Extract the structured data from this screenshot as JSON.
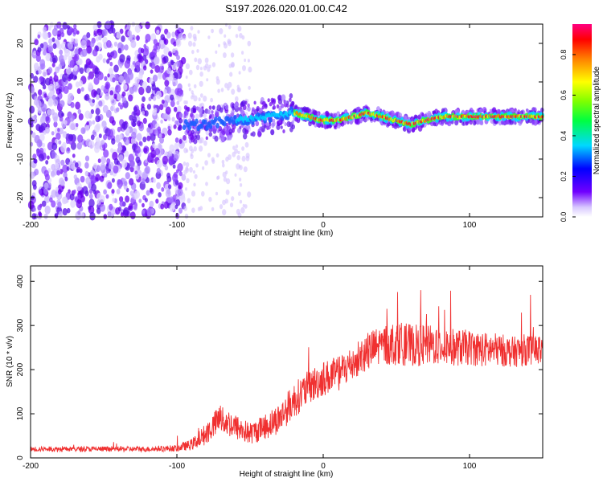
{
  "title": "S197.2026.020.01.00.C42",
  "chart_data": [
    {
      "type": "heatmap",
      "xlabel": "Height of straight line (km)",
      "ylabel": "Frequency (Hz)",
      "xlim": [
        -200,
        150
      ],
      "ylim": [
        -25,
        25
      ],
      "xticks": [
        -200,
        -100,
        0,
        100
      ],
      "yticks": [
        -20,
        -10,
        0,
        10,
        20
      ],
      "colorbar": {
        "label": "Normalized spectral amplitude",
        "range": [
          0,
          0.95
        ],
        "ticks": [
          0.0,
          0.2,
          0.4,
          0.6,
          0.8
        ]
      },
      "features": [
        {
          "region": "noise",
          "x_range": [
            -200,
            -95
          ],
          "freq_range": [
            -25,
            25
          ],
          "amplitude": "0.1-0.3"
        },
        {
          "region": "transition",
          "x_range": [
            -95,
            -20
          ],
          "freq_range": [
            -8,
            8
          ],
          "amplitude": "0.2-0.4"
        },
        {
          "region": "tone",
          "x_range": [
            -20,
            150
          ],
          "center_freq_hz": 1,
          "amplitude": "0.6-0.9"
        }
      ],
      "tone_path": {
        "x": [
          -95,
          -80,
          -60,
          -40,
          -20,
          -10,
          0,
          10,
          20,
          30,
          40,
          50,
          60,
          70,
          80,
          90,
          100,
          110,
          120,
          130,
          150
        ],
        "freq": [
          -1,
          -1,
          0,
          1,
          2,
          1,
          0,
          0,
          1,
          2,
          1,
          0,
          -1,
          0,
          1,
          1,
          1,
          1,
          1,
          1,
          1
        ]
      }
    },
    {
      "type": "line",
      "xlabel": "Height of straight line (km)",
      "ylabel": "SNR (10 * v/v)",
      "xlim": [
        -200,
        150
      ],
      "ylim": [
        0,
        435
      ],
      "xticks": [
        -200,
        -100,
        0,
        100
      ],
      "yticks": [
        0,
        100,
        200,
        300,
        400
      ],
      "color": "#f03030",
      "series": [
        {
          "name": "SNR",
          "x": [
            -200,
            -180,
            -160,
            -140,
            -120,
            -100,
            -90,
            -80,
            -70,
            -60,
            -50,
            -40,
            -30,
            -20,
            -10,
            0,
            10,
            20,
            30,
            40,
            50,
            60,
            70,
            80,
            90,
            100,
            110,
            120,
            130,
            140,
            150
          ],
          "y": [
            20,
            20,
            20,
            20,
            20,
            22,
            30,
            55,
            90,
            70,
            55,
            70,
            90,
            130,
            160,
            180,
            190,
            215,
            240,
            255,
            260,
            255,
            255,
            255,
            250,
            250,
            245,
            245,
            240,
            245,
            245
          ],
          "spread": [
            12,
            12,
            12,
            12,
            12,
            15,
            25,
            50,
            70,
            60,
            50,
            60,
            70,
            80,
            80,
            80,
            80,
            85,
            90,
            95,
            100,
            95,
            95,
            90,
            85,
            80,
            80,
            75,
            70,
            70,
            70
          ]
        }
      ]
    }
  ]
}
